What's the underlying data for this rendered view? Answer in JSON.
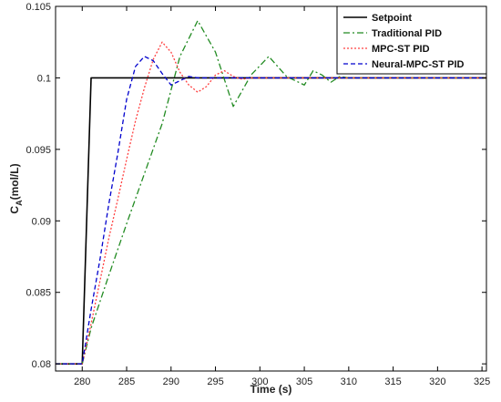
{
  "chart_data": {
    "type": "line",
    "xlabel": "Time (s)",
    "ylabel": {
      "main": "C",
      "subscript": "A",
      "rest": "(mol/L)"
    },
    "xlim": [
      277,
      325.5
    ],
    "ylim": [
      0.0795,
      0.105
    ],
    "x_ticks": [
      280,
      285,
      290,
      295,
      300,
      305,
      310,
      315,
      320,
      325
    ],
    "x_tick_labels": [
      "280",
      "285",
      "290",
      "295",
      "300",
      "305",
      "310",
      "315",
      "320",
      "325"
    ],
    "y_ticks": [
      0.08,
      0.085,
      0.09,
      0.095,
      0.1,
      0.105
    ],
    "y_tick_labels": [
      "0.08",
      "0.085",
      "0.09",
      "0.095",
      "0.1",
      "0.105"
    ],
    "grid": false,
    "legend_position": "top-right",
    "series": [
      {
        "name": "Setpoint",
        "color": "#000000",
        "dash": "solid",
        "x": [
          277,
          280,
          281,
          325.5
        ],
        "y": [
          0.08,
          0.08,
          0.1,
          0.1
        ]
      },
      {
        "name": "Traditional PID",
        "color": "#228b22",
        "dash": "dashdot",
        "x": [
          277,
          280,
          281,
          283,
          285,
          287,
          289,
          291,
          293,
          295,
          297,
          299,
          301,
          303,
          305,
          306,
          307,
          308,
          309,
          310,
          325.5
        ],
        "y": [
          0.08,
          0.08,
          0.0825,
          0.0862,
          0.0898,
          0.0933,
          0.0968,
          0.1015,
          0.104,
          0.1018,
          0.098,
          0.1002,
          0.1015,
          0.1001,
          0.0995,
          0.1005,
          0.1002,
          0.0997,
          0.1001,
          0.1,
          0.1
        ]
      },
      {
        "name": "MPC-ST PID",
        "color": "#ff4040",
        "dash": "dotted",
        "x": [
          277,
          280,
          281,
          282,
          283,
          284,
          285,
          286,
          287,
          288,
          289,
          290,
          291,
          292,
          293,
          294,
          295,
          296,
          297,
          298,
          299,
          300,
          325.5
        ],
        "y": [
          0.08,
          0.08,
          0.0828,
          0.0858,
          0.0888,
          0.0915,
          0.0943,
          0.097,
          0.0993,
          0.1013,
          0.1025,
          0.1018,
          0.1004,
          0.0995,
          0.099,
          0.0994,
          0.1002,
          0.1005,
          0.1001,
          0.0999,
          0.1,
          0.1,
          0.1
        ]
      },
      {
        "name": "Neural-MPC-ST PID",
        "color": "#0000cd",
        "dash": "dashed",
        "x": [
          277,
          280,
          281,
          282,
          283,
          284,
          285,
          286,
          287,
          288,
          289,
          290,
          291,
          292,
          293,
          325.5
        ],
        "y": [
          0.08,
          0.08,
          0.0838,
          0.0873,
          0.0912,
          0.0947,
          0.0985,
          0.1008,
          0.1015,
          0.1012,
          0.1003,
          0.0995,
          0.0998,
          0.1001,
          0.1,
          0.1
        ]
      }
    ]
  }
}
